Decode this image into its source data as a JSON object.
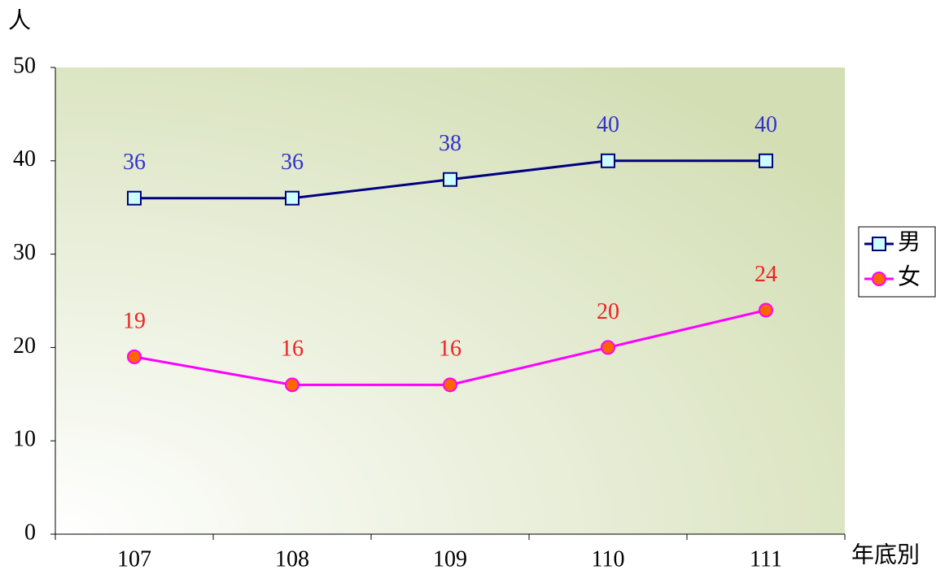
{
  "chart_data": {
    "type": "line",
    "y_label": "人",
    "x_label": "年底別",
    "categories": [
      "107",
      "108",
      "109",
      "110",
      "111"
    ],
    "series": [
      {
        "name": "男",
        "color": "#000080",
        "marker": "square",
        "marker_color": "#ccffff",
        "label_color": "#3333cc",
        "values": [
          36,
          36,
          38,
          40,
          40
        ]
      },
      {
        "name": "女",
        "color": "#ff00ff",
        "marker": "circle",
        "marker_color": "#ff6600",
        "label_color": "#ee2222",
        "values": [
          19,
          16,
          16,
          20,
          24
        ]
      }
    ],
    "ylim": [
      0,
      50
    ],
    "yticks": [
      0,
      10,
      20,
      30,
      40,
      50
    ],
    "data_labels": true,
    "legend": "right"
  }
}
